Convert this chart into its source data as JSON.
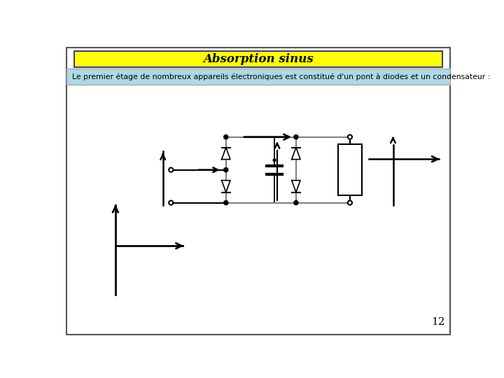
{
  "title": "Absorption sinus",
  "subtitle": "Le premier étage de nombreux appareils électroniques est constitué d'un pont à diodes et un condensateur :",
  "header_bg": "#add8e6",
  "title_bg": "#ffff00",
  "title_border": "#404080",
  "main_bg": "#ffffff",
  "page_number": "12",
  "fig_bg": "#ffffff"
}
